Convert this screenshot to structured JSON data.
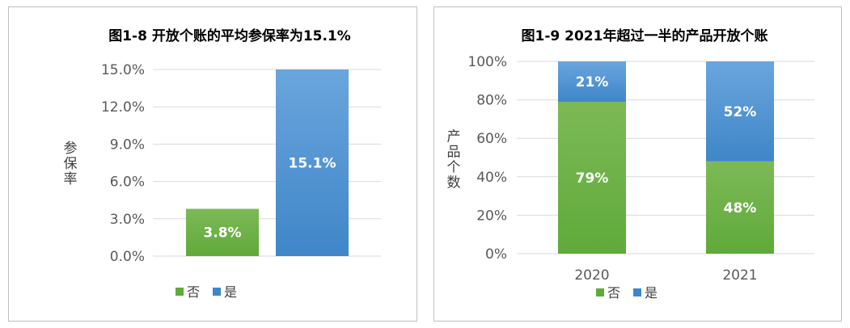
{
  "colors": {
    "green": "#5faa3a",
    "green_light": "#7db957",
    "blue": "#3f86c8",
    "blue_light": "#6aa5dd",
    "grid": "#d9d9d9"
  },
  "chart_data": [
    {
      "type": "bar",
      "title": "图1-8  开放个账的平均参保率为15.1%",
      "ylabel": "参保率",
      "ylim": [
        0,
        15
      ],
      "yticks": [
        "0.0%",
        "3.0%",
        "6.0%",
        "9.0%",
        "12.0%",
        "15.0%"
      ],
      "categories": [
        "否",
        "是"
      ],
      "values": [
        3.8,
        15.1
      ],
      "data_labels": [
        "3.8%",
        "15.1%"
      ],
      "legend": [
        "否",
        "是"
      ],
      "legend_position": "bottom",
      "grid": true
    },
    {
      "type": "bar",
      "stacked": true,
      "title": "图1-9  2021年超过一半的产品开放个账",
      "ylabel": "产品个数",
      "ylim": [
        0,
        100
      ],
      "yticks": [
        "0%",
        "20%",
        "40%",
        "60%",
        "80%",
        "100%"
      ],
      "categories": [
        "2020",
        "2021"
      ],
      "series": [
        {
          "name": "否",
          "values": [
            79,
            48
          ],
          "data_labels": [
            "79%",
            "48%"
          ]
        },
        {
          "name": "是",
          "values": [
            21,
            52
          ],
          "data_labels": [
            "21%",
            "52%"
          ]
        }
      ],
      "legend": [
        "否",
        "是"
      ],
      "legend_position": "bottom",
      "grid": true
    }
  ]
}
